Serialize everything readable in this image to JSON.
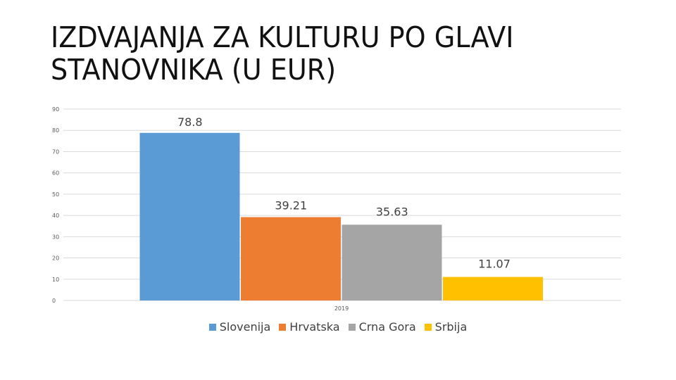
{
  "slide": {
    "title_line1": "IZDVAJANJA ZA KULTURU PO GLAVI",
    "title_line2": "STANOVNIKA (U EUR)"
  },
  "chart_data": {
    "type": "bar",
    "categories": [
      "2019"
    ],
    "series": [
      {
        "name": "Slovenija",
        "values": [
          78.8
        ],
        "label": "78.8",
        "color": "#5B9BD5"
      },
      {
        "name": "Hrvatska",
        "values": [
          39.21
        ],
        "label": "39.21",
        "color": "#ED7D31"
      },
      {
        "name": "Crna Gora",
        "values": [
          35.63
        ],
        "label": "35.63",
        "color": "#A5A5A5"
      },
      {
        "name": "Srbija",
        "values": [
          11.07
        ],
        "label": "11.07",
        "color": "#FFC000"
      }
    ],
    "ylim": [
      0,
      90
    ],
    "yticks": [
      "0",
      "10",
      "20",
      "30",
      "40",
      "50",
      "60",
      "70",
      "80",
      "90"
    ],
    "grid": true,
    "legend": "bottom",
    "gridline_color": "#D9D9D9"
  }
}
